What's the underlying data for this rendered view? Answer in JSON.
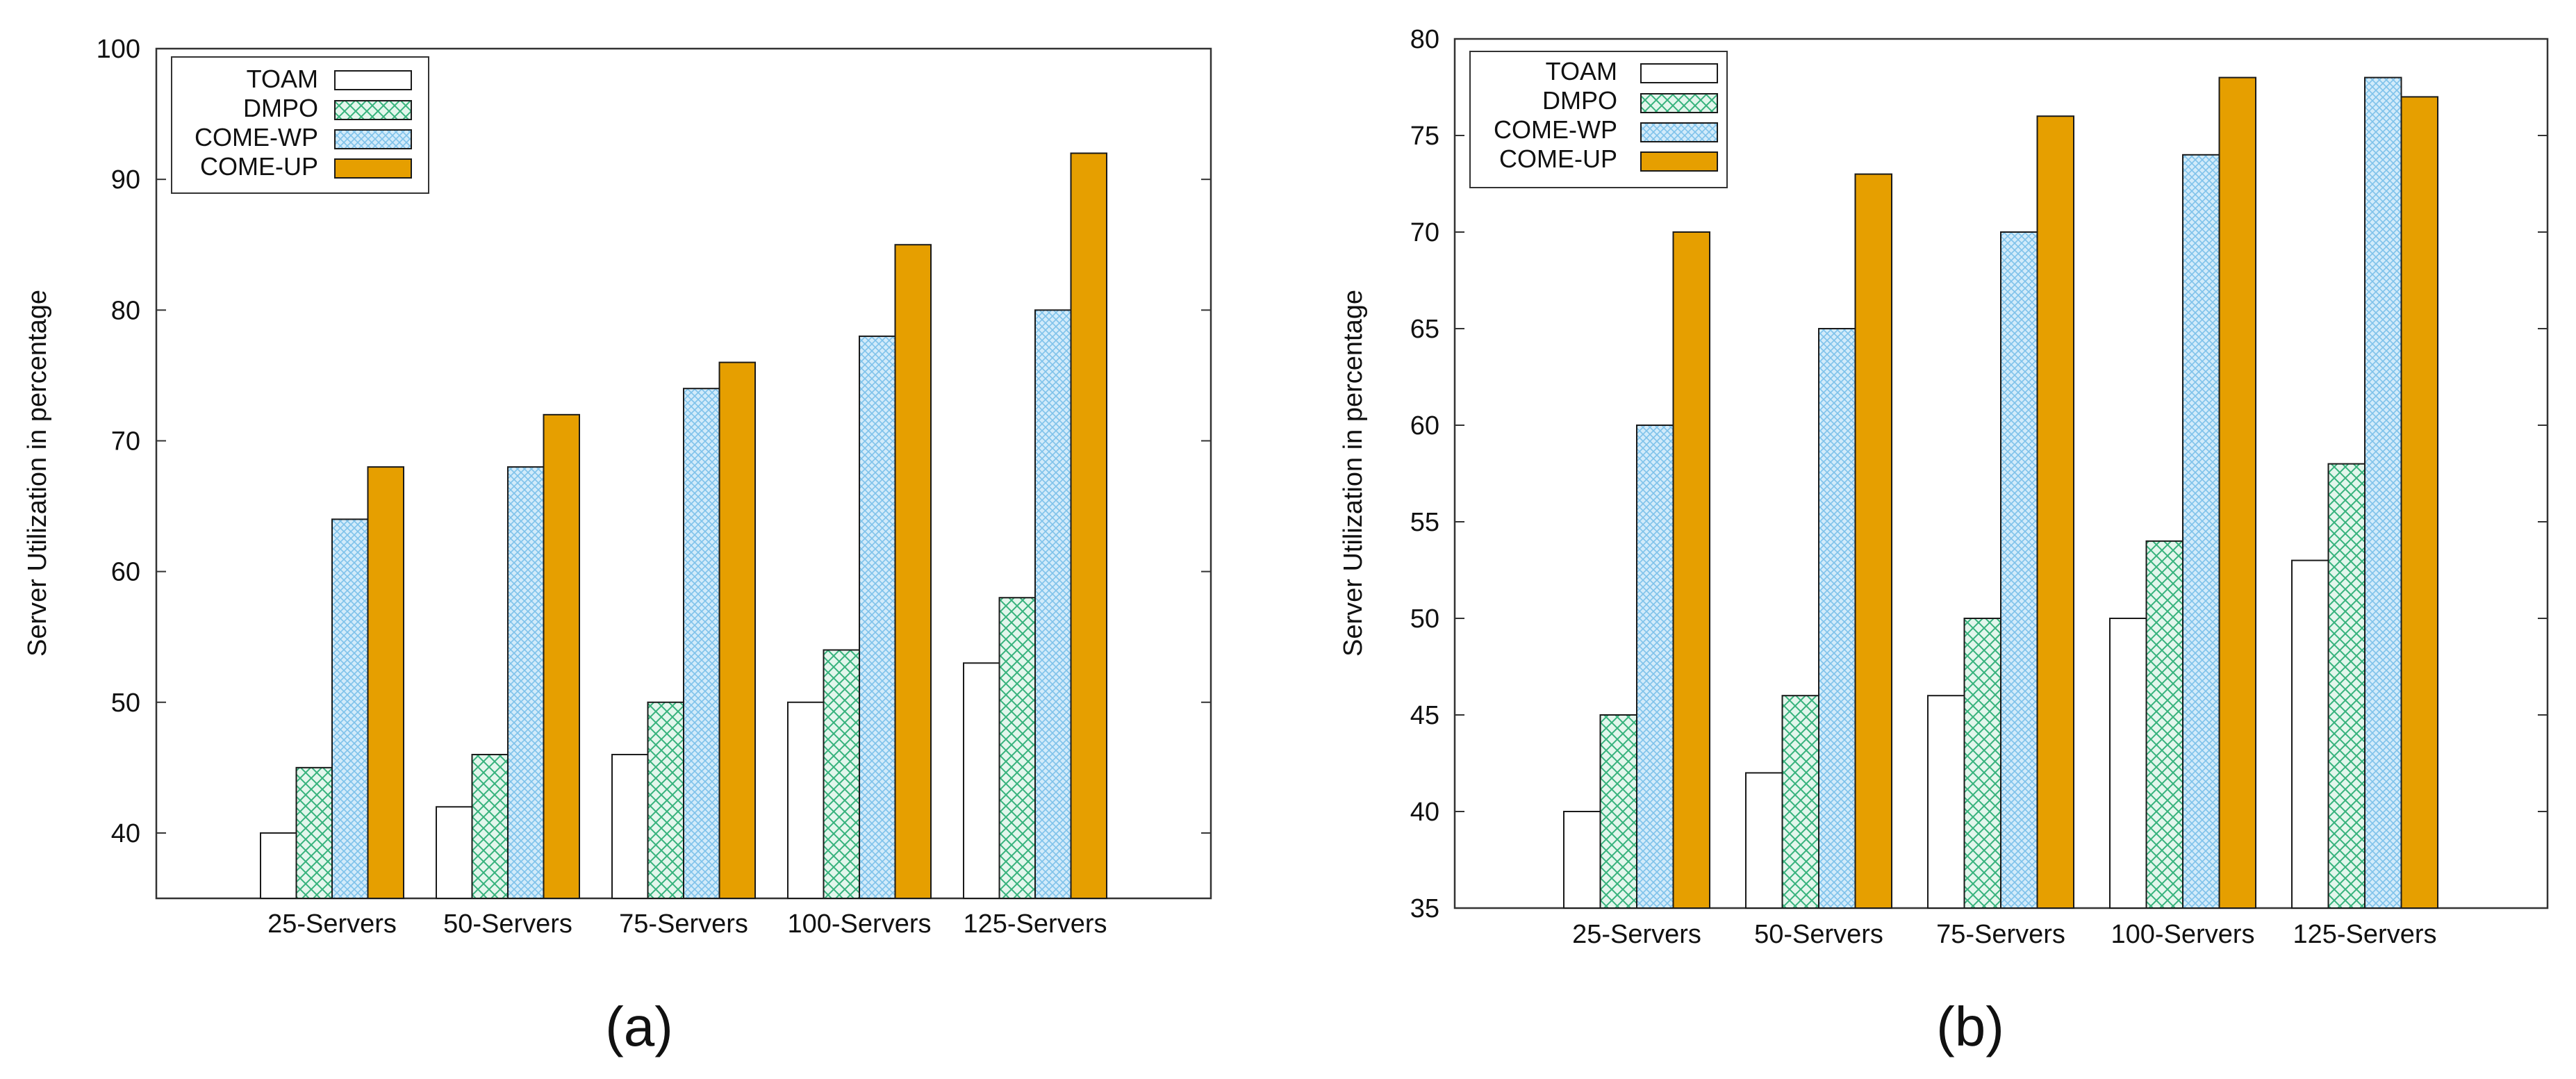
{
  "colors": {
    "toam": "#ffffff",
    "dmpo_fill": "#e3f6ec",
    "dmpo_hatch": "#36b27c",
    "comewp_fill": "#d2ebfa",
    "comewp_hatch": "#7ec2ea",
    "comeup": "#e69f00",
    "axis": "#333333",
    "bar_stroke": "#1a1a1a"
  },
  "chart_data": [
    {
      "type": "bar",
      "caption_open": "(",
      "caption_letter": "a",
      "caption_close": ")",
      "xlabel": "",
      "ylabel": "Server Utilization in percentage",
      "ylim": [
        35,
        100
      ],
      "yticks": [
        40,
        50,
        60,
        70,
        80,
        90,
        100
      ],
      "categories": [
        "25-Servers",
        "50-Servers",
        "75-Servers",
        "100-Servers",
        "125-Servers"
      ],
      "series": [
        {
          "name": "TOAM",
          "style": "toam",
          "values": [
            40,
            42,
            46,
            50,
            53
          ]
        },
        {
          "name": "DMPO",
          "style": "dmpo",
          "values": [
            45,
            46,
            50,
            54,
            58
          ]
        },
        {
          "name": "COME-WP",
          "style": "comewp",
          "values": [
            64,
            68,
            74,
            78,
            80
          ]
        },
        {
          "name": "COME-UP",
          "style": "comeup",
          "values": [
            68,
            72,
            76,
            85,
            92
          ]
        }
      ],
      "legend": "top-left",
      "grid": false
    },
    {
      "type": "bar",
      "caption_open": "(",
      "caption_letter": "b",
      "caption_close": ")",
      "xlabel": "",
      "ylabel": "Server Utilization in percentage",
      "ylim": [
        35,
        80
      ],
      "yticks": [
        35,
        40,
        45,
        50,
        55,
        60,
        65,
        70,
        75,
        80
      ],
      "categories": [
        "25-Servers",
        "50-Servers",
        "75-Servers",
        "100-Servers",
        "125-Servers"
      ],
      "series": [
        {
          "name": "TOAM",
          "style": "toam",
          "values": [
            40,
            42,
            46,
            50,
            53
          ]
        },
        {
          "name": "DMPO",
          "style": "dmpo",
          "values": [
            45,
            46,
            50,
            54,
            58
          ]
        },
        {
          "name": "COME-WP",
          "style": "comewp",
          "values": [
            60,
            65,
            70,
            74,
            78
          ]
        },
        {
          "name": "COME-UP",
          "style": "comeup",
          "values": [
            70,
            73,
            76,
            78,
            77
          ]
        }
      ],
      "legend": "top-left",
      "grid": false
    }
  ]
}
